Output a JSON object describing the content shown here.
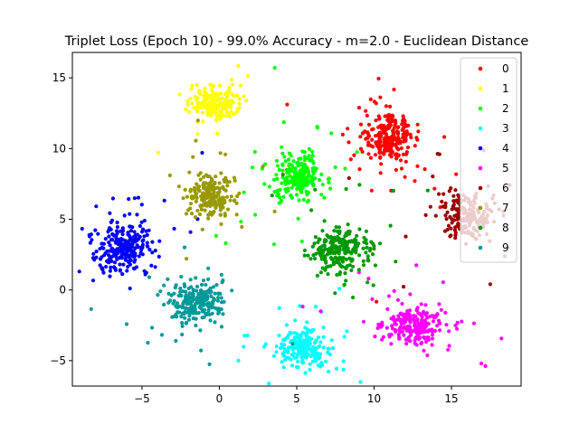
{
  "chart_data": {
    "type": "scatter",
    "title": "Triplet Loss (Epoch 10) - 99.0% Accuracy - m=2.0 - Euclidean Distance",
    "xlabel": "",
    "ylabel": "",
    "xlim": [
      -9.5,
      19.5
    ],
    "ylim": [
      -6.8,
      16.8
    ],
    "xticks": [
      -5,
      0,
      5,
      10,
      15
    ],
    "yticks": [
      -5,
      0,
      5,
      10,
      15
    ],
    "grid": false,
    "legend_position": "top-right",
    "series": [
      {
        "name": "0",
        "color": "#ff0000",
        "center": [
          11.0,
          10.8
        ],
        "spread": [
          0.75,
          0.9
        ],
        "count": 260
      },
      {
        "name": "1",
        "color": "#ffff00",
        "center": [
          -0.3,
          13.2
        ],
        "spread": [
          0.8,
          0.6
        ],
        "count": 200
      },
      {
        "name": "2",
        "color": "#00ff00",
        "center": [
          5.0,
          8.0
        ],
        "spread": [
          0.7,
          0.8
        ],
        "count": 230
      },
      {
        "name": "3",
        "color": "#00ffff",
        "center": [
          5.5,
          -4.0
        ],
        "spread": [
          0.8,
          0.7
        ],
        "count": 220
      },
      {
        "name": "4",
        "color": "#0000ff",
        "center": [
          -6.3,
          3.0
        ],
        "spread": [
          0.9,
          0.9
        ],
        "count": 260
      },
      {
        "name": "5",
        "color": "#ff00ff",
        "center": [
          12.7,
          -2.5
        ],
        "spread": [
          1.0,
          0.6
        ],
        "count": 240
      },
      {
        "name": "6",
        "color": "#990000",
        "center": [
          16.0,
          5.3
        ],
        "spread": [
          0.9,
          0.8
        ],
        "count": 200
      },
      {
        "name": "7",
        "color": "#999900",
        "center": [
          -0.7,
          6.8
        ],
        "spread": [
          0.7,
          0.8
        ],
        "count": 200
      },
      {
        "name": "8",
        "color": "#009900",
        "center": [
          7.8,
          2.8
        ],
        "spread": [
          0.9,
          0.8
        ],
        "count": 240
      },
      {
        "name": "9",
        "color": "#009999",
        "center": [
          -1.5,
          -0.9
        ],
        "spread": [
          0.9,
          0.7
        ],
        "count": 240
      }
    ]
  }
}
